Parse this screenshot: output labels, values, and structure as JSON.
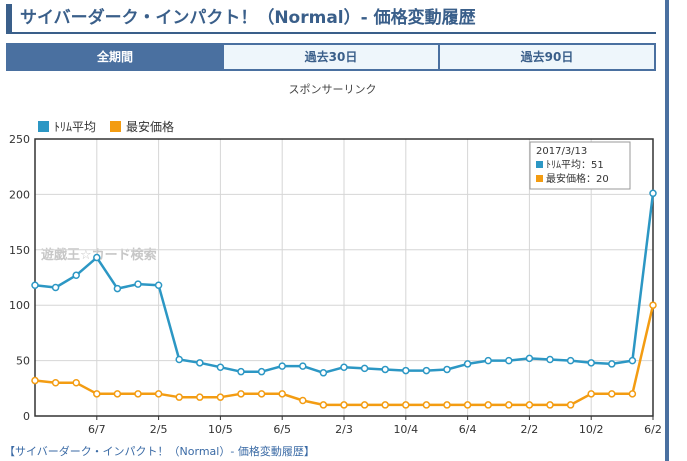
{
  "page": {
    "title": "サイバーダーク・インパクト！（Normal）- 価格変動履歴",
    "sponsor": "スポンサーリンク",
    "footer_link": "【サイバーダーク・インパクト！（Normal）- 価格変動履歴】"
  },
  "tabs": [
    {
      "label": "全期間",
      "active": true
    },
    {
      "label": "過去30日",
      "active": false
    },
    {
      "label": "過去90日",
      "active": false
    }
  ],
  "colors": {
    "accent": "#3a5f8a",
    "series_avg": "#2c97c4",
    "series_min": "#f39c12"
  },
  "chart_data": {
    "type": "line",
    "watermark": "遊戯王☆カード検索",
    "ylim": [
      0,
      250
    ],
    "y_ticks": [
      0,
      50,
      100,
      150,
      200,
      250
    ],
    "x_tick_labels": [
      "6/7",
      "2/5",
      "10/5",
      "6/5",
      "2/3",
      "10/4",
      "6/4",
      "2/2",
      "10/2",
      "6/2"
    ],
    "grid": true,
    "legend_position": "top-left",
    "series": [
      {
        "name": "ﾄﾘﾑ平均",
        "color": "#2c97c4",
        "values": [
          118,
          116,
          127,
          143,
          115,
          119,
          118,
          51,
          48,
          44,
          40,
          40,
          45,
          45,
          39,
          44,
          43,
          42,
          41,
          41,
          42,
          47,
          50,
          50,
          52,
          51,
          50,
          48,
          47,
          50,
          201
        ]
      },
      {
        "name": "最安価格",
        "color": "#f39c12",
        "values": [
          32,
          30,
          30,
          20,
          20,
          20,
          20,
          17,
          17,
          17,
          20,
          20,
          20,
          14,
          10,
          10,
          10,
          10,
          10,
          10,
          10,
          10,
          10,
          10,
          10,
          10,
          10,
          20,
          20,
          20,
          100
        ]
      }
    ],
    "tooltip": {
      "date": "2017/3/13",
      "avg_label": "ﾄﾘﾑ平均：51",
      "min_label": "最安価格：20"
    }
  }
}
